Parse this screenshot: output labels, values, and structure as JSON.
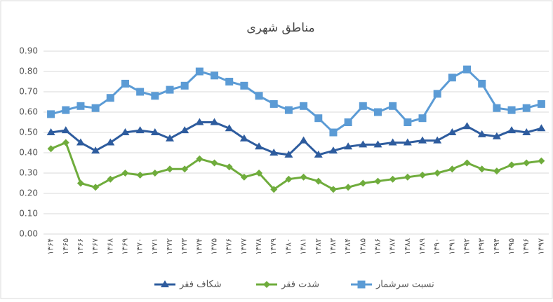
{
  "chart_data": {
    "type": "line",
    "title": "مناطق شهری",
    "categories": [
      "۱۳۶۴",
      "۱۳۶۵",
      "۱۳۶۶",
      "۱۳۶۷",
      "۱۳۶۸",
      "۱۳۶۹",
      "۱۳۷۰",
      "۱۳۷۱",
      "۱۳۷۲",
      "۱۳۷۳",
      "۱۳۷۴",
      "۱۳۷۵",
      "۱۳۷۶",
      "۱۳۷۷",
      "۱۳۷۸",
      "۱۳۷۹",
      "۱۳۸۰",
      "۱۳۸۱",
      "۱۳۸۲",
      "۱۳۸۳",
      "۱۳۸۴",
      "۱۳۸۵",
      "۱۳۸۶",
      "۱۳۸۷",
      "۱۳۸۸",
      "۱۳۸۹",
      "۱۳۹۰",
      "۱۳۹۱",
      "۱۳۹۲",
      "۱۳۹۳",
      "۱۳۹۴",
      "۱۳۹۵",
      "۱۳۹۶",
      "۱۳۹۷"
    ],
    "series": [
      {
        "name": "شکاف فقر",
        "color": "#2e5c9e",
        "marker": "triangle",
        "values": [
          0.5,
          0.51,
          0.45,
          0.41,
          0.45,
          0.5,
          0.51,
          0.5,
          0.47,
          0.51,
          0.55,
          0.55,
          0.52,
          0.47,
          0.43,
          0.4,
          0.39,
          0.46,
          0.39,
          0.41,
          0.43,
          0.44,
          0.44,
          0.45,
          0.45,
          0.46,
          0.46,
          0.5,
          0.53,
          0.49,
          0.48,
          0.51,
          0.5,
          0.52
        ]
      },
      {
        "name": "شدت فقر",
        "color": "#6fac3c",
        "marker": "diamond",
        "values": [
          0.42,
          0.45,
          0.25,
          0.23,
          0.27,
          0.3,
          0.29,
          0.3,
          0.32,
          0.32,
          0.37,
          0.35,
          0.33,
          0.28,
          0.3,
          0.22,
          0.27,
          0.28,
          0.26,
          0.22,
          0.23,
          0.25,
          0.26,
          0.27,
          0.28,
          0.29,
          0.3,
          0.32,
          0.35,
          0.32,
          0.31,
          0.34,
          0.35,
          0.36
        ]
      },
      {
        "name": "نسبت سرشمار",
        "color": "#5b9bd5",
        "marker": "square",
        "values": [
          0.59,
          0.61,
          0.63,
          0.62,
          0.67,
          0.74,
          0.7,
          0.68,
          0.71,
          0.73,
          0.8,
          0.78,
          0.75,
          0.73,
          0.68,
          0.64,
          0.61,
          0.63,
          0.57,
          0.5,
          0.55,
          0.63,
          0.6,
          0.63,
          0.55,
          0.57,
          0.69,
          0.77,
          0.81,
          0.74,
          0.62,
          0.61,
          0.62,
          0.64
        ]
      }
    ],
    "ylim": [
      0,
      0.9
    ],
    "yticks": [
      {
        "value": 0,
        "label": "0.00"
      },
      {
        "value": 0.1,
        "label": "0.10"
      },
      {
        "value": 0.2,
        "label": "0.20"
      },
      {
        "value": 0.3,
        "label": "0.30"
      },
      {
        "value": 0.4,
        "label": "0.40"
      },
      {
        "value": 0.5,
        "label": "0.50"
      },
      {
        "value": 0.6,
        "label": "0.60"
      },
      {
        "value": 0.7,
        "label": "0.70"
      },
      {
        "value": 0.8,
        "label": "0.80"
      },
      {
        "value": 0.9,
        "label": "0.90"
      }
    ],
    "grid": true
  }
}
